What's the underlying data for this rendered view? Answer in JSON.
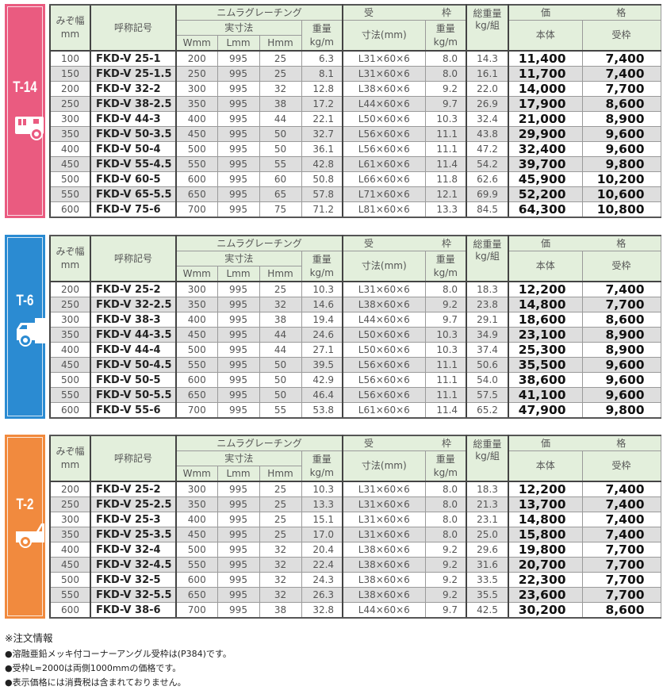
{
  "headers": {
    "width": "みぞ幅",
    "width_unit": "mm",
    "name": "呼称記号",
    "grating": "ニムラグレーチング",
    "actual_size": "実寸法",
    "w": "Wmm",
    "l": "Lmm",
    "h": "Hmm",
    "weight": "重量",
    "weight_unit": "kg/m",
    "frame_a": "受",
    "frame_b": "枠",
    "frame_size": "寸法(mm)",
    "total_weight": "総重量",
    "total_weight_unit": "kg/組",
    "price_a": "価",
    "price_b": "格",
    "body": "本体",
    "frame": "受枠"
  },
  "tables": [
    {
      "label": "T-14",
      "color": "#ea5b80",
      "icon": "bus-icon",
      "rows": [
        [
          "100",
          "FKD-V  25-1",
          "200",
          "995",
          "25",
          "6.3",
          "L31×60×6",
          "8.0",
          "14.3",
          "11,400",
          "7,400"
        ],
        [
          "150",
          "FKD-V  25-1.5",
          "250",
          "995",
          "25",
          "8.1",
          "L31×60×6",
          "8.0",
          "16.1",
          "11,700",
          "7,400"
        ],
        [
          "200",
          "FKD-V  32-2",
          "300",
          "995",
          "32",
          "12.8",
          "L38×60×6",
          "9.2",
          "22.0",
          "14,000",
          "7,700"
        ],
        [
          "250",
          "FKD-V  38-2.5",
          "350",
          "995",
          "38",
          "17.2",
          "L44×60×6",
          "9.7",
          "26.9",
          "17,900",
          "8,600"
        ],
        [
          "300",
          "FKD-V  44-3",
          "400",
          "995",
          "44",
          "22.1",
          "L50×60×6",
          "10.3",
          "32.4",
          "21,000",
          "8,900"
        ],
        [
          "350",
          "FKD-V  50-3.5",
          "450",
          "995",
          "50",
          "32.7",
          "L56×60×6",
          "11.1",
          "43.8",
          "29,900",
          "9,600"
        ],
        [
          "400",
          "FKD-V  50-4",
          "500",
          "995",
          "50",
          "36.1",
          "L56×60×6",
          "11.1",
          "47.2",
          "32,400",
          "9,600"
        ],
        [
          "450",
          "FKD-V  55-4.5",
          "550",
          "995",
          "55",
          "42.8",
          "L61×60×6",
          "11.4",
          "54.2",
          "39,700",
          "9,800"
        ],
        [
          "500",
          "FKD-V  60-5",
          "600",
          "995",
          "60",
          "50.8",
          "L66×60×6",
          "11.8",
          "62.6",
          "45,900",
          "10,200"
        ],
        [
          "550",
          "FKD-V  65-5.5",
          "650",
          "995",
          "65",
          "57.8",
          "L71×60×6",
          "12.1",
          "69.9",
          "52,200",
          "10,600"
        ],
        [
          "600",
          "FKD-V  75-6",
          "700",
          "995",
          "75",
          "71.2",
          "L81×60×6",
          "13.3",
          "84.5",
          "64,300",
          "10,800"
        ]
      ]
    },
    {
      "label": "T-6",
      "color": "#2b8bd2",
      "icon": "truck-icon",
      "rows": [
        [
          "200",
          "FKD-V  25-2",
          "300",
          "995",
          "25",
          "10.3",
          "L31×60×6",
          "8.0",
          "18.3",
          "12,200",
          "7,400"
        ],
        [
          "250",
          "FKD-V  32-2.5",
          "350",
          "995",
          "32",
          "14.6",
          "L38×60×6",
          "9.2",
          "23.8",
          "14,800",
          "7,700"
        ],
        [
          "300",
          "FKD-V  38-3",
          "400",
          "995",
          "38",
          "19.4",
          "L44×60×6",
          "9.7",
          "29.1",
          "18,600",
          "8,600"
        ],
        [
          "350",
          "FKD-V  44-3.5",
          "450",
          "995",
          "44",
          "24.6",
          "L50×60×6",
          "10.3",
          "34.9",
          "23,100",
          "8,900"
        ],
        [
          "400",
          "FKD-V  44-4",
          "500",
          "995",
          "44",
          "27.1",
          "L50×60×6",
          "10.3",
          "37.4",
          "25,300",
          "8,900"
        ],
        [
          "450",
          "FKD-V  50-4.5",
          "550",
          "995",
          "50",
          "39.5",
          "L56×60×6",
          "11.1",
          "50.6",
          "35,500",
          "9,600"
        ],
        [
          "500",
          "FKD-V  50-5",
          "600",
          "995",
          "50",
          "42.9",
          "L56×60×6",
          "11.1",
          "54.0",
          "38,600",
          "9,600"
        ],
        [
          "550",
          "FKD-V  50-5.5",
          "650",
          "995",
          "50",
          "46.4",
          "L56×60×6",
          "11.1",
          "57.5",
          "41,100",
          "9,600"
        ],
        [
          "600",
          "FKD-V  55-6",
          "700",
          "995",
          "55",
          "53.8",
          "L61×60×6",
          "11.4",
          "65.2",
          "47,900",
          "9,800"
        ]
      ]
    },
    {
      "label": "T-2",
      "color": "#f18a3e",
      "icon": "pickup-truck-icon",
      "rows": [
        [
          "200",
          "FKD-V  25-2",
          "300",
          "995",
          "25",
          "10.3",
          "L31×60×6",
          "8.0",
          "18.3",
          "12,200",
          "7,400"
        ],
        [
          "250",
          "FKD-V  25-2.5",
          "350",
          "995",
          "25",
          "13.3",
          "L31×60×6",
          "8.0",
          "21.3",
          "13,700",
          "7,400"
        ],
        [
          "300",
          "FKD-V  25-3",
          "400",
          "995",
          "25",
          "15.1",
          "L31×60×6",
          "8.0",
          "23.1",
          "14,800",
          "7,400"
        ],
        [
          "350",
          "FKD-V  25-3.5",
          "450",
          "995",
          "25",
          "17.0",
          "L31×60×6",
          "8.0",
          "25.0",
          "15,800",
          "7,400"
        ],
        [
          "400",
          "FKD-V  32-4",
          "500",
          "995",
          "32",
          "20.4",
          "L38×60×6",
          "9.2",
          "29.6",
          "19,800",
          "7,700"
        ],
        [
          "450",
          "FKD-V  32-4.5",
          "550",
          "995",
          "32",
          "22.4",
          "L38×60×6",
          "9.2",
          "31.6",
          "20,700",
          "7,700"
        ],
        [
          "500",
          "FKD-V  32-5",
          "600",
          "995",
          "32",
          "24.3",
          "L38×60×6",
          "9.2",
          "33.5",
          "22,300",
          "7,700"
        ],
        [
          "550",
          "FKD-V  32-5.5",
          "650",
          "995",
          "32",
          "26.3",
          "L38×60×6",
          "9.2",
          "35.5",
          "23,600",
          "7,700"
        ],
        [
          "600",
          "FKD-V  38-6",
          "700",
          "995",
          "38",
          "32.8",
          "L44×60×6",
          "9.7",
          "42.5",
          "30,200",
          "8,600"
        ]
      ]
    }
  ],
  "notes": {
    "title": "※注文情報",
    "items": [
      "●溶融亜鉛メッキ付コーナーアングル受枠は(P384)です。",
      "●受枠L=2000は両側1000mmの価格です。",
      "●表示価格には消費税は含まれておりません。"
    ]
  }
}
